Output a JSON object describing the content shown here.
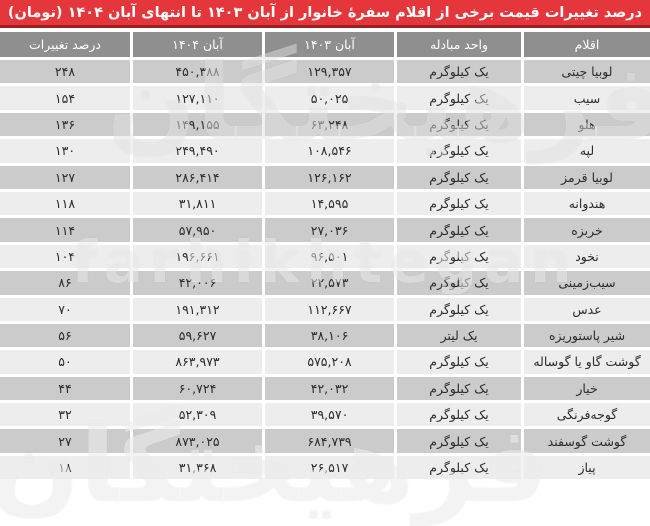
{
  "title": "درصد تغییرات قیمت برخی از اقلام سفرۀ خانوار از آبان ۱۴۰۳ تا انتهای آبان ۱۴۰۴ (تومان)",
  "table": {
    "columns": [
      "اقلام",
      "واحد مبادله",
      "آبان ۱۴۰۳",
      "آبان ۱۴۰۴",
      "درصد تغییرات"
    ],
    "rows": [
      {
        "item": "لوبیا چیتی",
        "unit": "یک کیلوگرم",
        "y1403": "۱۲۹,۳۵۷",
        "y1404": "۴۵۰,۳۸۸",
        "change": "۲۴۸"
      },
      {
        "item": "سیب",
        "unit": "یک کیلوگرم",
        "y1403": "۵۰,۰۲۵",
        "y1404": "۱۲۷,۱۱۰",
        "change": "۱۵۴"
      },
      {
        "item": "هلو",
        "unit": "یک کیلوگرم",
        "y1403": "۶۳,۲۴۸",
        "y1404": "۱۴۹,۱۵۵",
        "change": "۱۳۶"
      },
      {
        "item": "لپه",
        "unit": "یک کیلوگرم",
        "y1403": "۱۰۸,۵۴۶",
        "y1404": "۲۴۹,۴۹۰",
        "change": "۱۳۰"
      },
      {
        "item": "لوبیا قرمز",
        "unit": "یک کیلوگرم",
        "y1403": "۱۲۶,۱۶۲",
        "y1404": "۲۸۶,۴۱۴",
        "change": "۱۲۷"
      },
      {
        "item": "هندوانه",
        "unit": "یک کیلوگرم",
        "y1403": "۱۴,۵۹۵",
        "y1404": "۳۱,۸۱۱",
        "change": "۱۱۸"
      },
      {
        "item": "خربزه",
        "unit": "یک کیلوگرم",
        "y1403": "۲۷,۰۳۶",
        "y1404": "۵۷,۹۵۰",
        "change": "۱۱۴"
      },
      {
        "item": "نخود",
        "unit": "یک کیلوگرم",
        "y1403": "۹۶,۵۰۱",
        "y1404": "۱۹۶,۶۶۱",
        "change": "۱۰۴"
      },
      {
        "item": "سیب‌زمینی",
        "unit": "یک کیلوگرم",
        "y1403": "۲۲,۵۷۳",
        "y1404": "۴۲,۰۰۶",
        "change": "۸۶"
      },
      {
        "item": "عدس",
        "unit": "یک کیلوگرم",
        "y1403": "۱۱۲,۶۶۷",
        "y1404": "۱۹۱,۳۱۲",
        "change": "۷۰"
      },
      {
        "item": "شیر پاستوریزه",
        "unit": "یک لیتر",
        "y1403": "۳۸,۱۰۶",
        "y1404": "۵۹,۶۲۷",
        "change": "۵۶"
      },
      {
        "item": "گوشت گاو یا گوساله",
        "unit": "یک کیلوگرم",
        "y1403": "۵۷۵,۲۰۸",
        "y1404": "۸۶۳,۹۷۳",
        "change": "۵۰"
      },
      {
        "item": "خیار",
        "unit": "یک کیلوگرم",
        "y1403": "۴۲,۰۳۲",
        "y1404": "۶۰,۷۲۴",
        "change": "۴۴"
      },
      {
        "item": "گوجه‌فرنگی",
        "unit": "یک کیلوگرم",
        "y1403": "۳۹,۵۷۰",
        "y1404": "۵۲,۳۰۹",
        "change": "۳۲"
      },
      {
        "item": "گوشت گوسفند",
        "unit": "یک کیلوگرم",
        "y1403": "۶۸۴,۷۳۹",
        "y1404": "۸۷۳,۰۲۵",
        "change": "۲۷"
      },
      {
        "item": "پیاز",
        "unit": "یک کیلوگرم",
        "y1403": "۲۶,۵۱۷",
        "y1404": "۳۱,۳۶۸",
        "change": "۱۸"
      }
    ]
  },
  "watermark": {
    "latin": "farhikhtegan",
    "persian": "فرهیختگان"
  },
  "colors": {
    "accent_red": "#e4363b",
    "accent_red_dark": "#9b2024",
    "header_bg": "#8f8f8f",
    "row_odd": "#cbcbcb",
    "row_even": "#ededed"
  },
  "chart_data": {
    "type": "table",
    "title": "درصد تغییرات قیمت برخی از اقلام سفرۀ خانوار از آبان ۱۴۰۳ تا انتهای آبان ۱۴۰۴ (تومان)",
    "columns": [
      "اقلام",
      "واحد مبادله",
      "آبان ۱۴۰۳",
      "آبان ۱۴۰۴",
      "درصد تغییرات"
    ],
    "rows": [
      [
        "لوبیا چیتی",
        "یک کیلوگرم",
        129357,
        450388,
        248
      ],
      [
        "سیب",
        "یک کیلوگرم",
        50025,
        127110,
        154
      ],
      [
        "هلو",
        "یک کیلوگرم",
        63248,
        149155,
        136
      ],
      [
        "لپه",
        "یک کیلوگرم",
        108546,
        249490,
        130
      ],
      [
        "لوبیا قرمز",
        "یک کیلوگرم",
        126162,
        286414,
        127
      ],
      [
        "هندوانه",
        "یک کیلوگرم",
        14595,
        31811,
        118
      ],
      [
        "خربزه",
        "یک کیلوگرم",
        27036,
        57950,
        114
      ],
      [
        "نخود",
        "یک کیلوگرم",
        96501,
        196661,
        104
      ],
      [
        "سیب‌زمینی",
        "یک کیلوگرم",
        22573,
        42006,
        86
      ],
      [
        "عدس",
        "یک کیلوگرم",
        112667,
        191312,
        70
      ],
      [
        "شیر پاستوریزه",
        "یک لیتر",
        38106,
        59627,
        56
      ],
      [
        "گوشت گاو یا گوساله",
        "یک کیلوگرم",
        575208,
        863973,
        50
      ],
      [
        "خیار",
        "یک کیلوگرم",
        42032,
        60724,
        44
      ],
      [
        "گوجه‌فرنگی",
        "یک کیلوگرم",
        39570,
        52309,
        32
      ],
      [
        "گوشت گوسفند",
        "یک کیلوگرم",
        684739,
        873025,
        27
      ],
      [
        "پیاز",
        "یک کیلوگرم",
        26517,
        31368,
        18
      ]
    ]
  }
}
